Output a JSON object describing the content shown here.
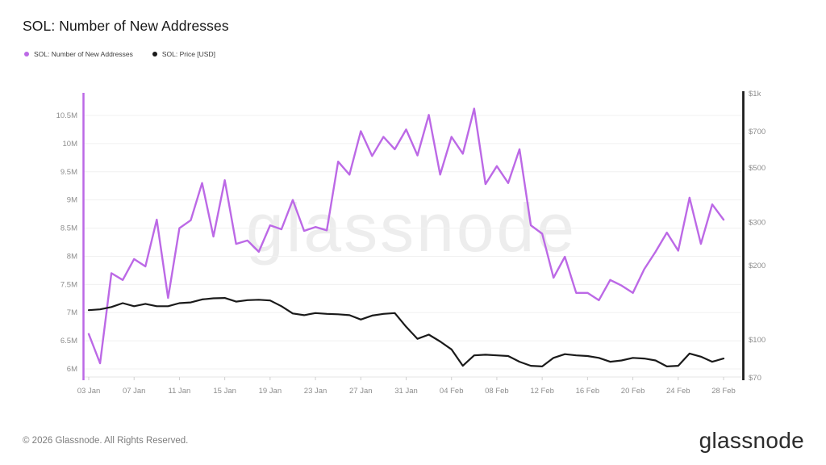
{
  "header": {
    "title": "SOL: Number of New Addresses"
  },
  "legend": {
    "items": [
      {
        "label": "SOL: Number of New Addresses",
        "color": "#bc69e6"
      },
      {
        "label": "SOL: Price [USD]",
        "color": "#1a1a1a"
      }
    ]
  },
  "watermark": "glassnode",
  "footer": {
    "copyright": "© 2026 Glassnode. All Rights Reserved.",
    "logo_text": "glassnode"
  },
  "chart_data": {
    "type": "line",
    "title": "SOL: Number of New Addresses",
    "legend_position": "top-left",
    "grid": "horizontal gridlines at left-axis ticks",
    "x": [
      "03 Jan",
      "04 Jan",
      "05 Jan",
      "06 Jan",
      "07 Jan",
      "08 Jan",
      "09 Jan",
      "10 Jan",
      "11 Jan",
      "12 Jan",
      "13 Jan",
      "14 Jan",
      "15 Jan",
      "16 Jan",
      "17 Jan",
      "18 Jan",
      "19 Jan",
      "20 Jan",
      "21 Jan",
      "22 Jan",
      "23 Jan",
      "24 Jan",
      "25 Jan",
      "26 Jan",
      "27 Jan",
      "28 Jan",
      "29 Jan",
      "30 Jan",
      "31 Jan",
      "01 Feb",
      "02 Feb",
      "03 Feb",
      "04 Feb",
      "05 Feb",
      "06 Feb",
      "07 Feb",
      "08 Feb",
      "09 Feb",
      "10 Feb",
      "11 Feb",
      "12 Feb",
      "13 Feb",
      "14 Feb",
      "15 Feb",
      "16 Feb",
      "17 Feb",
      "18 Feb",
      "19 Feb",
      "20 Feb",
      "21 Feb",
      "22 Feb",
      "23 Feb",
      "24 Feb",
      "25 Feb",
      "26 Feb",
      "27 Feb",
      "28 Feb"
    ],
    "x_tick_labels": [
      "03 Jan",
      "07 Jan",
      "11 Jan",
      "15 Jan",
      "19 Jan",
      "23 Jan",
      "27 Jan",
      "31 Jan",
      "04 Feb",
      "08 Feb",
      "12 Feb",
      "16 Feb",
      "20 Feb",
      "24 Feb",
      "28 Feb"
    ],
    "x_tick_indices": [
      0,
      4,
      8,
      12,
      16,
      20,
      24,
      28,
      32,
      36,
      40,
      44,
      48,
      52,
      56
    ],
    "left_axis": {
      "scale": "linear",
      "unit": "new addresses (millions)",
      "tick_labels": [
        "10.5M",
        "10M",
        "9.5M",
        "9M",
        "8.5M",
        "8M",
        "7.5M",
        "7M",
        "6.5M",
        "6M"
      ],
      "tick_values": [
        10.5,
        10,
        9.5,
        9,
        8.5,
        8,
        7.5,
        7,
        6.5,
        6
      ],
      "range": [
        5.8,
        10.9
      ]
    },
    "right_axis": {
      "scale": "log",
      "unit": "USD",
      "tick_labels": [
        "$1k",
        "$700",
        "$500",
        "$300",
        "$200",
        "$100",
        "$70"
      ],
      "tick_values": [
        1000,
        700,
        500,
        300,
        200,
        100,
        70
      ],
      "range": [
        68,
        1050
      ]
    },
    "series": [
      {
        "name": "SOL: Number of New Addresses",
        "axis": "left",
        "unit": "M",
        "color": "#bc69e6",
        "values": [
          6.62,
          6.1,
          7.7,
          7.58,
          7.95,
          7.82,
          8.65,
          7.26,
          8.5,
          8.64,
          9.3,
          8.35,
          9.35,
          8.22,
          8.28,
          8.08,
          8.55,
          8.48,
          9.0,
          8.45,
          8.52,
          8.46,
          9.68,
          9.45,
          10.22,
          9.78,
          10.12,
          9.9,
          10.25,
          9.79,
          10.51,
          9.45,
          10.12,
          9.82,
          10.62,
          9.28,
          9.6,
          9.3,
          9.9,
          8.55,
          8.4,
          7.62,
          7.99,
          7.35,
          7.35,
          7.22,
          7.58,
          7.48,
          7.35,
          7.77,
          8.08,
          8.42,
          8.1,
          9.04,
          8.22,
          8.92,
          8.65
        ]
      },
      {
        "name": "SOL: Price [USD]",
        "axis": "right",
        "unit": "USD",
        "color": "#1a1a1a",
        "values": [
          132,
          133,
          136,
          141,
          137,
          140,
          137,
          137,
          141,
          142,
          146,
          147.5,
          148,
          143,
          145,
          145.5,
          144.5,
          137,
          128,
          126,
          128.5,
          127.5,
          127,
          126,
          121,
          125.5,
          127.5,
          128.5,
          113,
          101,
          105,
          98.5,
          91.5,
          78.5,
          86.5,
          87,
          86.5,
          86,
          81.5,
          78.5,
          78,
          84.5,
          87.5,
          86.5,
          86,
          84.5,
          81.5,
          82.5,
          84.5,
          84,
          82.5,
          78,
          78.5,
          88,
          85.5,
          81.5,
          84
        ]
      }
    ]
  }
}
